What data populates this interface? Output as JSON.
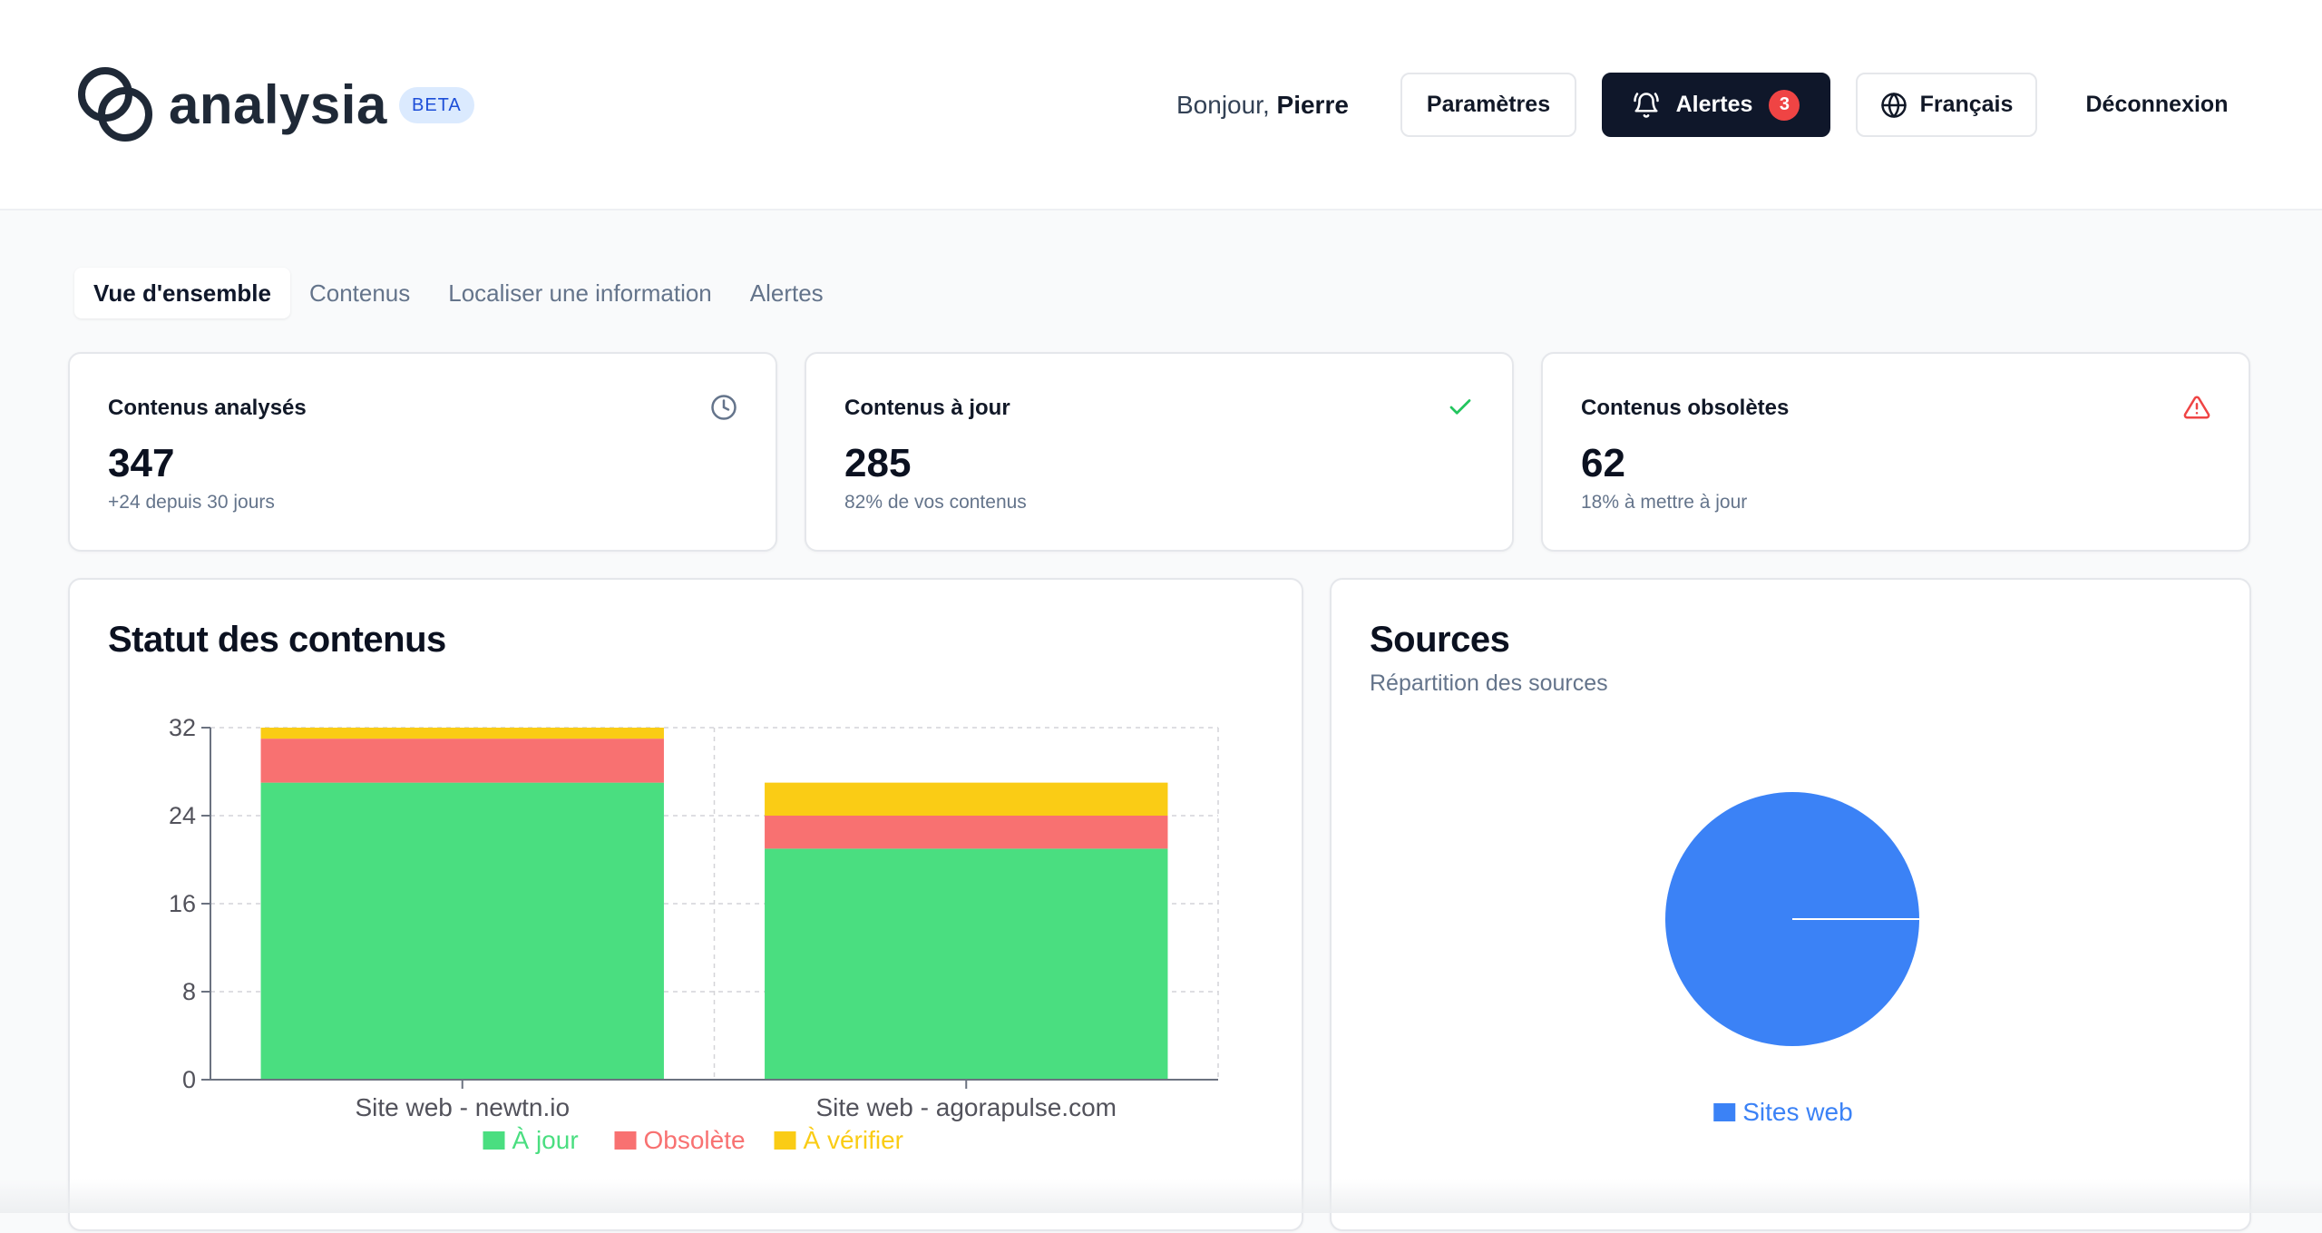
{
  "header": {
    "logo_text": "analysia",
    "beta_label": "BETA",
    "greeting_prefix": "Bonjour, ",
    "user_name": "Pierre",
    "settings_label": "Paramètres",
    "alerts_label": "Alertes",
    "alerts_count": "3",
    "language_label": "Français",
    "logout_label": "Déconnexion"
  },
  "tabs": [
    {
      "label": "Vue d'ensemble",
      "active": true
    },
    {
      "label": "Contenus",
      "active": false
    },
    {
      "label": "Localiser une information",
      "active": false
    },
    {
      "label": "Alertes",
      "active": false
    }
  ],
  "stats": [
    {
      "title": "Contenus analysés",
      "value": "347",
      "sub": "+24 depuis 30 jours",
      "icon": "clock-icon"
    },
    {
      "title": "Contenus à jour",
      "value": "285",
      "sub": "82% de vos contenus",
      "icon": "check-icon"
    },
    {
      "title": "Contenus obsolètes",
      "value": "62",
      "sub": "18% à mettre à jour",
      "icon": "warning-icon"
    }
  ],
  "colors": {
    "up_to_date": "#4ade80",
    "obsolete": "#f87171",
    "to_verify": "#facc15",
    "source_web": "#3b82f6",
    "check": "#22c55e",
    "warning": "#ef4444"
  },
  "status_panel": {
    "title": "Statut des contenus"
  },
  "sources_panel": {
    "title": "Sources",
    "subtitle": "Répartition des sources"
  },
  "chart_data": [
    {
      "type": "bar",
      "stacked": true,
      "title": "Statut des contenus",
      "categories": [
        "Site web - newtn.io",
        "Site web - agorapulse.com"
      ],
      "series": [
        {
          "name": "À jour",
          "color": "#4ade80",
          "values": [
            27,
            21
          ]
        },
        {
          "name": "Obsolète",
          "color": "#f87171",
          "values": [
            4,
            3
          ]
        },
        {
          "name": "À vérifier",
          "color": "#facc15",
          "values": [
            1,
            3
          ]
        }
      ],
      "yticks": [
        0,
        8,
        16,
        24,
        32
      ],
      "ylim": [
        0,
        32
      ],
      "grid": true,
      "legend": "bottom"
    },
    {
      "type": "pie",
      "title": "Sources",
      "labels": [
        "Sites web"
      ],
      "values": [
        100
      ],
      "colors": [
        "#3b82f6"
      ],
      "legend": "bottom"
    }
  ]
}
